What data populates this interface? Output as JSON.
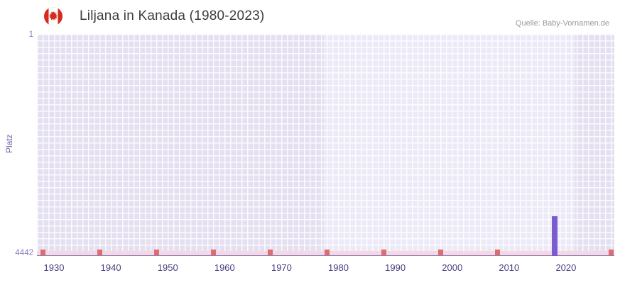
{
  "header": {
    "title": "Liljana in Kanada (1980-2023)",
    "source": "Quelle: Baby-Vornamen.de",
    "flag_icon": "canada-flag"
  },
  "chart_data": {
    "type": "bar",
    "title": "Liljana in Kanada (1980-2023)",
    "xlabel": "",
    "ylabel": "Platz",
    "y_axis": {
      "min": 1,
      "max": 4442,
      "inverted": true,
      "tick_labels": [
        "1",
        "4442"
      ]
    },
    "x_axis": {
      "tick_years": [
        1930,
        1940,
        1950,
        1960,
        1970,
        1980,
        1990,
        2000,
        2010,
        2020
      ],
      "domain": [
        1927,
        2028.5
      ]
    },
    "series": [
      {
        "name": "Platz",
        "points": [
          {
            "year": 2018,
            "rank": 3650
          }
        ]
      }
    ],
    "data_range_band": {
      "from_year": 1977.5,
      "to_year": 2021.5
    },
    "unranked_marker_years": [
      1928,
      1938,
      1948,
      1958,
      1968,
      1978,
      1988,
      1998,
      2008,
      2018,
      2028
    ],
    "legend": "none",
    "grid": "on",
    "colors": {
      "bar": "#7a5bd0",
      "unranked_marker": "#e06c6c",
      "unranked_strip": "#f6d7e2",
      "band_inside": "#edeaf8",
      "band_outside": "#e4e0f1",
      "grid": "#ffffff",
      "y_tick": "#8a7fc0",
      "x_tick": "#4a4080",
      "axis_title": "#7568a8",
      "title": "#3d3d3d",
      "source": "#999999"
    }
  }
}
